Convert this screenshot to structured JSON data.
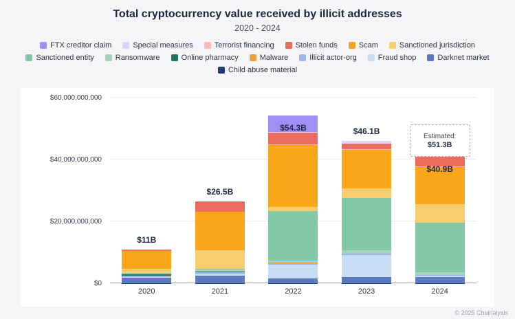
{
  "title": "Total cryptocurrency value received by illicit addresses",
  "subtitle": "2020 - 2024",
  "footer": "© 2025 Chainalysis",
  "legend": {
    "rows": [
      [
        "FTX creditor claim",
        "Special measures",
        "Terrorist financing",
        "Stolen funds",
        "Scam",
        "Sanctioned jurisdiction"
      ],
      [
        "Sanctioned entity",
        "Ransomware",
        "Online pharmacy",
        "Malware",
        "Illicit actor-org",
        "Fraud shop",
        "Darknet market"
      ],
      [
        "Child abuse material"
      ]
    ]
  },
  "chart_data": {
    "type": "bar",
    "stacked": true,
    "unit": "USD billions",
    "categories": [
      "2020",
      "2021",
      "2022",
      "2023",
      "2024"
    ],
    "ylim": [
      0,
      60
    ],
    "grid": true,
    "legend_position": "top",
    "yticks": [
      {
        "value": 0,
        "label": "$0"
      },
      {
        "value": 20,
        "label": "$20,000,000,000"
      },
      {
        "value": 40,
        "label": "$40,000,000,000"
      },
      {
        "value": 60,
        "label": "$60,000,000,000"
      }
    ],
    "series": [
      {
        "name": "Child abuse material",
        "color": "#1d3c78",
        "values": [
          0.05,
          0.05,
          0.05,
          0.05,
          0.05
        ]
      },
      {
        "name": "Darknet market",
        "color": "#5a7bc0",
        "values": [
          1.7,
          2.5,
          1.5,
          2.0,
          2.0
        ]
      },
      {
        "name": "Fraud shop",
        "color": "#c7ddf6",
        "values": [
          0.2,
          0.5,
          4.5,
          7.0,
          0.3
        ]
      },
      {
        "name": "Illicit actor-org",
        "color": "#9fb5ec",
        "values": [
          0.3,
          0.5,
          0.5,
          0.4,
          0.3
        ]
      },
      {
        "name": "Malware",
        "color": "#e8a33d",
        "values": [
          0.1,
          0.1,
          0.1,
          0.1,
          0.05
        ]
      },
      {
        "name": "Online pharmacy",
        "color": "#20725c",
        "values": [
          0.5,
          0.1,
          0.1,
          0.1,
          0.05
        ]
      },
      {
        "name": "Ransomware",
        "color": "#a5d3bd",
        "values": [
          0.35,
          0.6,
          0.6,
          1.0,
          0.8
        ]
      },
      {
        "name": "Sanctioned entity",
        "color": "#82c8a5",
        "values": [
          0.1,
          0.4,
          15.9,
          17.0,
          16.0
        ]
      },
      {
        "name": "Sanctioned jurisdiction",
        "color": "#f8cd6d",
        "values": [
          1.3,
          6.0,
          1.5,
          3.0,
          6.0
        ]
      },
      {
        "name": "Scam",
        "color": "#f9a61a",
        "values": [
          5.8,
          12.3,
          20.0,
          12.5,
          12.0
        ]
      },
      {
        "name": "Terrorist financing",
        "color": "#f7bcb4",
        "values": [
          0.05,
          0.15,
          0.2,
          0.2,
          0.3
        ]
      },
      {
        "name": "Stolen funds",
        "color": "#ec6c5f",
        "values": [
          0.5,
          3.3,
          3.8,
          1.75,
          3.05
        ]
      },
      {
        "name": "Special measures",
        "color": "#ddd3f8",
        "values": [
          0,
          0,
          0.15,
          1.0,
          0
        ]
      },
      {
        "name": "FTX creditor claim",
        "color": "#a18ff5",
        "values": [
          0,
          0,
          5.4,
          0,
          0
        ]
      }
    ],
    "totals": [
      {
        "label": "$11B",
        "placement": "above"
      },
      {
        "label": "$26.5B",
        "placement": "above"
      },
      {
        "label": "$54.3B",
        "placement": "inside"
      },
      {
        "label": "$46.1B",
        "placement": "above"
      },
      {
        "label": "$40.9B",
        "placement": "inside"
      }
    ],
    "estimate": {
      "category": "2024",
      "value": 51.3,
      "label_line1": "Estimated:",
      "label_line2": "$51.3B"
    }
  }
}
